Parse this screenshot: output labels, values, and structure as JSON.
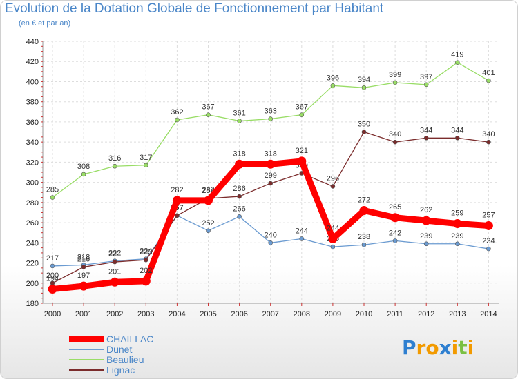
{
  "chart_data": {
    "type": "line",
    "title": "Evolution de la Dotation Globale de Fonctionnement par Habitant",
    "subtitle": "(en € et par an)",
    "categories": [
      "2000",
      "2001",
      "2002",
      "2003",
      "2004",
      "2005",
      "2006",
      "2007",
      "2008",
      "2009",
      "2010",
      "2011",
      "2012",
      "2013",
      "2014"
    ],
    "ylim": [
      180,
      440
    ],
    "yticks": [
      180,
      200,
      220,
      240,
      260,
      280,
      300,
      320,
      340,
      360,
      380,
      400,
      420,
      440
    ],
    "series": [
      {
        "name": "CHAILLAC",
        "color": "#ff0000",
        "values": [
          194,
          197,
          201,
          202,
          282,
          282,
          318,
          318,
          321,
          244,
          272,
          265,
          262,
          259,
          257
        ]
      },
      {
        "name": "Dunet",
        "color": "#6b9bd1",
        "values": [
          217,
          218,
          222,
          224,
          267,
          252,
          266,
          240,
          244,
          236,
          238,
          242,
          239,
          239,
          234
        ]
      },
      {
        "name": "Beaulieu",
        "color": "#99dd66",
        "values": [
          285,
          308,
          316,
          317,
          362,
          367,
          361,
          363,
          367,
          396,
          394,
          399,
          397,
          419,
          401
        ]
      },
      {
        "name": "Lignac",
        "color": "#7b2c2c",
        "values": [
          200,
          216,
          221,
          223,
          267,
          284,
          286,
          299,
          309,
          296,
          350,
          340,
          344,
          344,
          340
        ]
      }
    ]
  },
  "logo": {
    "letters": [
      "P",
      "r",
      "o",
      "x",
      "i",
      "t",
      "i"
    ],
    "colors": [
      "#2e7fd0",
      "#f29a00",
      "#f29a00",
      "#2e7fd0",
      "#f29a00",
      "#7bc043",
      "#f29a00"
    ]
  }
}
